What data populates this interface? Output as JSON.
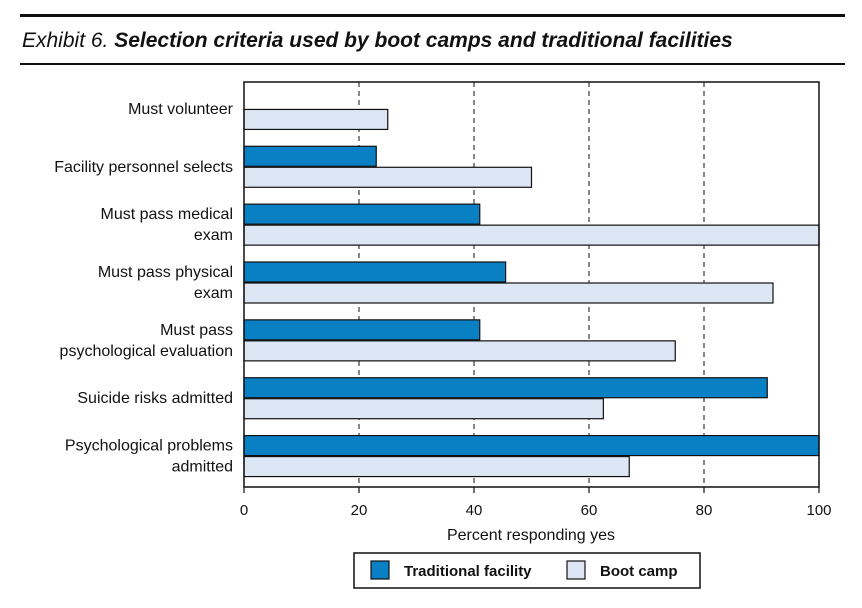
{
  "title": {
    "prefix": "Exhibit 6.",
    "main": "Selection criteria used by boot camps and traditional facilities"
  },
  "chart_data": {
    "type": "bar",
    "orientation": "horizontal",
    "categories": [
      [
        "Must volunteer"
      ],
      [
        "Facility personnel selects"
      ],
      [
        "Must pass medical",
        "exam"
      ],
      [
        "Must pass physical",
        "exam"
      ],
      [
        "Must pass",
        "psychological evaluation"
      ],
      [
        "Suicide risks admitted"
      ],
      [
        "Psychological problems",
        "admitted"
      ]
    ],
    "series": [
      {
        "name": "Traditional facility",
        "color": "#0a80c4",
        "values": [
          0,
          23,
          41,
          45.5,
          41,
          91,
          100
        ]
      },
      {
        "name": "Boot camp",
        "color": "#dce6f4",
        "values": [
          25,
          50,
          100,
          92,
          75,
          62.5,
          67
        ]
      }
    ],
    "xlabel": "Percent responding yes",
    "xlim": [
      0,
      100
    ],
    "xticks": [
      0,
      20,
      40,
      60,
      80,
      100
    ],
    "grid": "vertical dashed",
    "legend_position": "bottom-center"
  }
}
